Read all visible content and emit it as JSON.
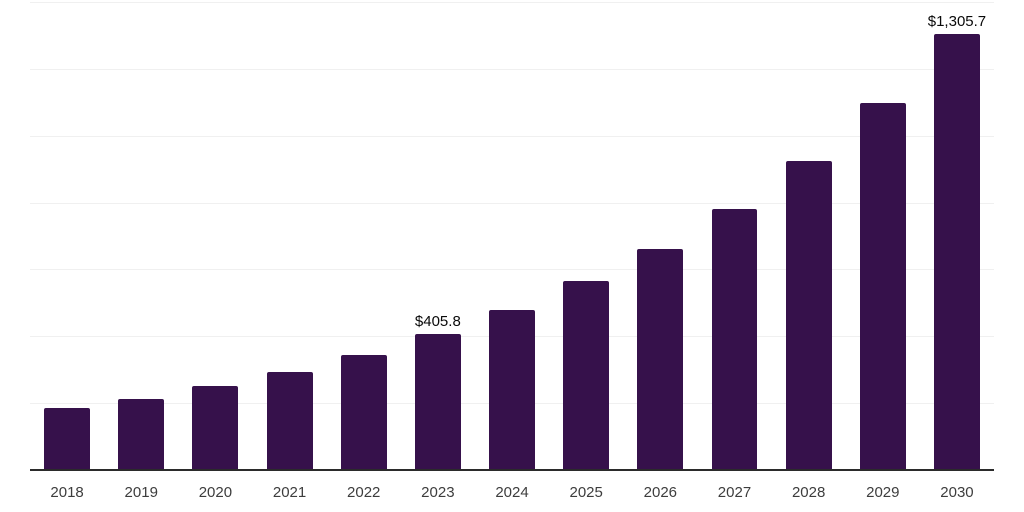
{
  "chart_data": {
    "type": "bar",
    "title": "",
    "xlabel": "",
    "ylabel": "",
    "categories": [
      "2018",
      "2019",
      "2020",
      "2021",
      "2022",
      "2023",
      "2024",
      "2025",
      "2026",
      "2027",
      "2028",
      "2029",
      "2030"
    ],
    "values": [
      185,
      212,
      251,
      293,
      344,
      405.8,
      479,
      565,
      661,
      781,
      924,
      1098,
      1305.7
    ],
    "data_labels": [
      "",
      "",
      "",
      "",
      "",
      "$405.8",
      "",
      "",
      "",
      "",
      "",
      "",
      "$1,305.7"
    ],
    "ylim": [
      0,
      1400
    ],
    "grid_step": 200,
    "grid": true,
    "legend": false,
    "bar_color": "#36114B",
    "gridline_color": "#f0f0f0",
    "axis_line_color": "#2b2b2b",
    "tick_label_color": "#3d3d3d",
    "data_label_color": "#0a0a0a",
    "background_color": "#ffffff"
  }
}
